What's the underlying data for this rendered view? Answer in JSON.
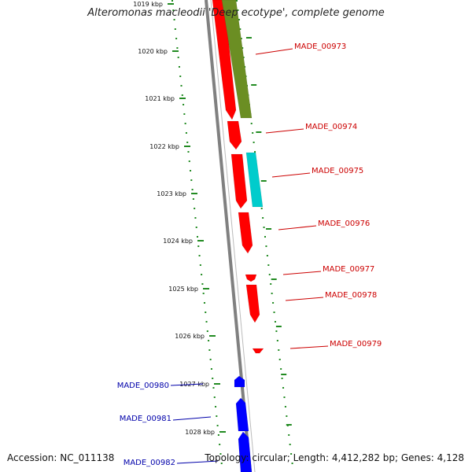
{
  "title": "Alteromonas macleodii 'Deep ecotype', complete genome",
  "accession_text": "Accession: NC_011138",
  "topology_text": "Topology: circular; Length: 4,412,282 bp; Genes: 4,128",
  "ticks": [
    "1019 kbp",
    "1020 kbp",
    "1021 kbp",
    "1022 kbp",
    "1023 kbp",
    "1024 kbp",
    "1025 kbp",
    "1026 kbp",
    "1027 kbp",
    "1028 kbp"
  ],
  "genes_forward": [
    "MADE_00973",
    "MADE_00974",
    "MADE_00975",
    "MADE_00976",
    "MADE_00977",
    "MADE_00978",
    "MADE_00979"
  ],
  "genes_reverse": [
    "MADE_00980",
    "MADE_00981",
    "MADE_00982"
  ],
  "colors": {
    "forward": "#ff0000",
    "reverse": "#0000ff",
    "olive": "#6b8e23",
    "cyan": "#00cccc",
    "backbone": "#808080",
    "tick": "#228b22",
    "label_forward": "#cc0000",
    "label_reverse": "#0000aa"
  }
}
